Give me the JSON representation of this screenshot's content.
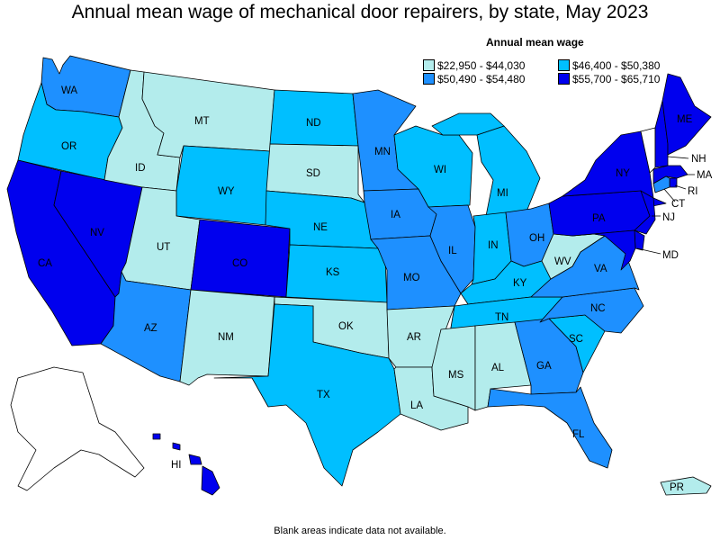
{
  "title": "Annual mean wage of mechanical door repairers, by state, May 2023",
  "legend": {
    "title": "Annual mean wage",
    "items": [
      {
        "label": "$22,950 - $44,030",
        "color": "#b3ecec"
      },
      {
        "label": "$46,400 - $50,380",
        "color": "#00bfff"
      },
      {
        "label": "$50,490 - $54,480",
        "color": "#1e90ff"
      },
      {
        "label": "$55,700 - $65,710",
        "color": "#0000ee"
      }
    ]
  },
  "footnote": "Blank areas indicate data not available.",
  "colors": {
    "c1": "#b3ecec",
    "c2": "#00bfff",
    "c3": "#1e90ff",
    "c4": "#0000ee",
    "blank": "#ffffff"
  },
  "states": {
    "WA": {
      "label": "WA",
      "bin": 3
    },
    "OR": {
      "label": "OR",
      "bin": 2
    },
    "CA": {
      "label": "CA",
      "bin": 4
    },
    "NV": {
      "label": "NV",
      "bin": 4
    },
    "ID": {
      "label": "ID",
      "bin": 1
    },
    "MT": {
      "label": "MT",
      "bin": 1
    },
    "WY": {
      "label": "WY",
      "bin": 2
    },
    "UT": {
      "label": "UT",
      "bin": 1
    },
    "AZ": {
      "label": "AZ",
      "bin": 3
    },
    "CO": {
      "label": "CO",
      "bin": 4
    },
    "NM": {
      "label": "NM",
      "bin": 1
    },
    "ND": {
      "label": "ND",
      "bin": 2
    },
    "SD": {
      "label": "SD",
      "bin": 1
    },
    "NE": {
      "label": "NE",
      "bin": 2
    },
    "KS": {
      "label": "KS",
      "bin": 2
    },
    "OK": {
      "label": "OK",
      "bin": 1
    },
    "TX": {
      "label": "TX",
      "bin": 2
    },
    "MN": {
      "label": "MN",
      "bin": 3
    },
    "IA": {
      "label": "IA",
      "bin": 3
    },
    "MO": {
      "label": "MO",
      "bin": 3
    },
    "AR": {
      "label": "AR",
      "bin": 1
    },
    "LA": {
      "label": "LA",
      "bin": 1
    },
    "WI": {
      "label": "WI",
      "bin": 2
    },
    "IL": {
      "label": "IL",
      "bin": 3
    },
    "MI": {
      "label": "MI",
      "bin": 2
    },
    "IN": {
      "label": "IN",
      "bin": 2
    },
    "OH": {
      "label": "OH",
      "bin": 3
    },
    "KY": {
      "label": "KY",
      "bin": 2
    },
    "TN": {
      "label": "TN",
      "bin": 2
    },
    "MS": {
      "label": "MS",
      "bin": 1
    },
    "AL": {
      "label": "AL",
      "bin": 1
    },
    "GA": {
      "label": "GA",
      "bin": 3
    },
    "FL": {
      "label": "FL",
      "bin": 3
    },
    "SC": {
      "label": "SC",
      "bin": 2
    },
    "NC": {
      "label": "NC",
      "bin": 3
    },
    "VA": {
      "label": "VA",
      "bin": 3
    },
    "WV": {
      "label": "WV",
      "bin": 1
    },
    "PA": {
      "label": "PA",
      "bin": 4
    },
    "NY": {
      "label": "NY",
      "bin": 4
    },
    "VT": {
      "label": "",
      "bin": 0
    },
    "NH": {
      "label": "NH",
      "bin": 4
    },
    "ME": {
      "label": "ME",
      "bin": 4
    },
    "MA": {
      "label": "MA",
      "bin": 4
    },
    "RI": {
      "label": "RI",
      "bin": 4
    },
    "CT": {
      "label": "CT",
      "bin": 3
    },
    "NJ": {
      "label": "NJ",
      "bin": 4
    },
    "DE": {
      "label": "",
      "bin": 4
    },
    "MD": {
      "label": "MD",
      "bin": 4
    },
    "AK": {
      "label": "",
      "bin": 0
    },
    "HI": {
      "label": "HI",
      "bin": 4
    },
    "PR": {
      "label": "PR",
      "bin": 1
    }
  }
}
